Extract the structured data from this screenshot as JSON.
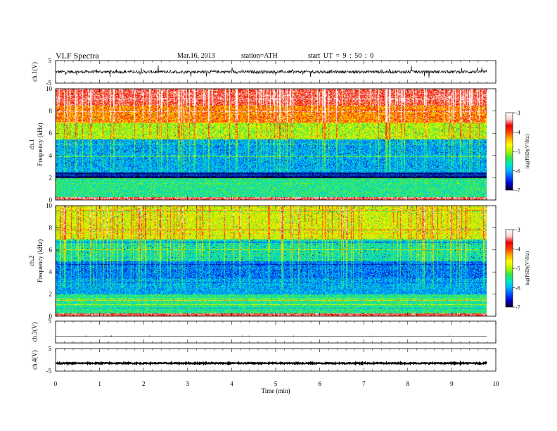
{
  "header": {
    "title": "VLF  Spectra",
    "date": "Mar.16, 2013",
    "station": "station=ATH",
    "start_time": "start  UT =   9 : 50 : 0"
  },
  "chart_data": [
    {
      "type": "line",
      "panel": "ch1-waveform",
      "ylabel": "ch.1(V)",
      "ylim": [
        -5,
        5
      ],
      "yticks": [
        "5",
        "-5"
      ],
      "x_range_min": [
        0,
        9.8
      ],
      "description_values": {
        "baseline": 0,
        "typical_amplitude": 1.0,
        "spike_amplitude": 2.5
      }
    },
    {
      "type": "heatmap",
      "panel": "ch1-spectrogram",
      "xlabel": "Time  (min)",
      "ylabel": "ch.1\nFrequency  (kHz)",
      "ylim": [
        0,
        10
      ],
      "yticks": [
        "0",
        "2",
        "4",
        "6",
        "8",
        "10"
      ],
      "xlim": [
        0,
        10
      ],
      "data_xlim": [
        0,
        9.8
      ],
      "colorbar": {
        "label": "log(PSD)(V²/Hz)",
        "range": [
          -7,
          -3
        ],
        "ticks": [
          "-3",
          "-4",
          "-5",
          "-6",
          "-7"
        ]
      },
      "approx_band_levels_kHz": [
        {
          "from": 0,
          "to": 0.3,
          "log_psd": -3.5
        },
        {
          "from": 0.3,
          "to": 2,
          "log_psd": -5.5
        },
        {
          "from": 2,
          "to": 2.5,
          "log_psd": -6.8
        },
        {
          "from": 2.5,
          "to": 5.5,
          "log_psd": -6.0
        },
        {
          "from": 5.5,
          "to": 7,
          "log_psd": -5.0
        },
        {
          "from": 7,
          "to": 8.5,
          "log_psd": -4.2
        },
        {
          "from": 8.5,
          "to": 10,
          "log_psd": -3.6
        }
      ]
    },
    {
      "type": "heatmap",
      "panel": "ch2-spectrogram",
      "ylabel": "ch.2\nFrequency  (kHz)",
      "ylim": [
        0,
        10
      ],
      "yticks": [
        "0",
        "2",
        "4",
        "6",
        "8",
        "10"
      ],
      "xlim": [
        0,
        10
      ],
      "data_xlim": [
        0,
        9.8
      ],
      "colorbar": {
        "label": "log(PSD)(V²/Hz)",
        "range": [
          -7,
          -3
        ],
        "ticks": [
          "-3",
          "-4",
          "-5",
          "-6",
          "-7"
        ]
      },
      "approx_band_levels_kHz": [
        {
          "from": 0,
          "to": 0.3,
          "log_psd": -3.6
        },
        {
          "from": 0.3,
          "to": 2,
          "log_psd": -5.5
        },
        {
          "from": 2,
          "to": 3.5,
          "log_psd": -6.0
        },
        {
          "from": 3.5,
          "to": 5,
          "log_psd": -6.2
        },
        {
          "from": 5,
          "to": 7,
          "log_psd": -5.6
        },
        {
          "from": 7,
          "to": 10,
          "log_psd": -4.8
        }
      ]
    },
    {
      "type": "line",
      "panel": "ch3-waveform",
      "ylabel": "ch.3(V)",
      "ylim": [
        -5,
        5
      ],
      "yticks": [
        "5"
      ],
      "description_values": {
        "baseline": -2
      }
    },
    {
      "type": "line",
      "panel": "ch4-waveform",
      "ylabel": "ch.4(V)",
      "ylim": [
        -5,
        5
      ],
      "yticks": [
        "5",
        "-5"
      ],
      "xlabel": "Time  (min)",
      "xlim": [
        0,
        10
      ],
      "xticks": [
        "0",
        "1",
        "2",
        "3",
        "4",
        "5",
        "6",
        "7",
        "8",
        "9",
        "10"
      ],
      "description_values": {
        "baseline": -1.5
      }
    }
  ],
  "colors": {
    "colormap": [
      "#00002a",
      "#0000c8",
      "#0050ff",
      "#00b4ff",
      "#00e8c8",
      "#2ee84a",
      "#b4f000",
      "#ffff00",
      "#ffb000",
      "#ff4000",
      "#e80000",
      "#ffd0d0",
      "#ffffff"
    ],
    "axis": "#000000",
    "trace": "#000000"
  }
}
